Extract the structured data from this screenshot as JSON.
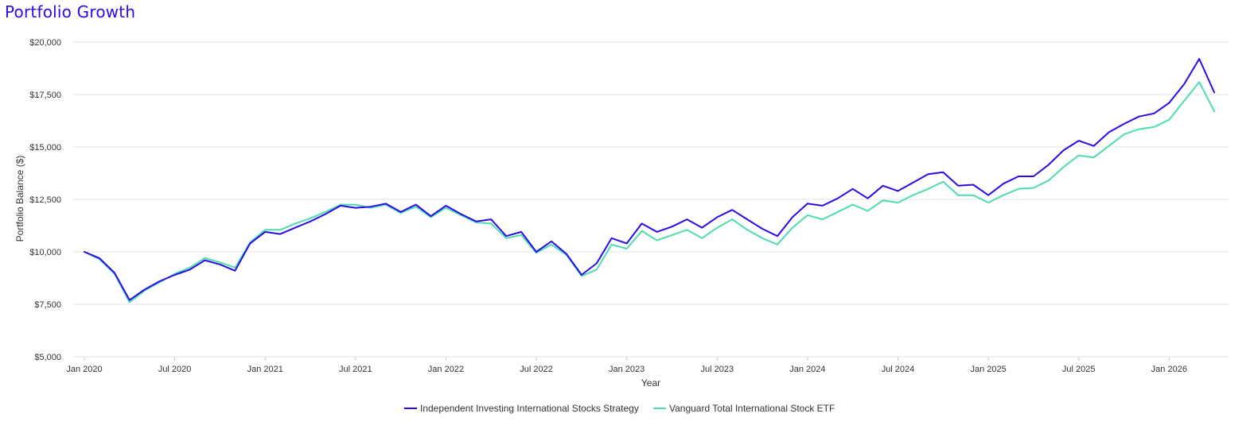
{
  "chart_data": {
    "type": "line",
    "title": "Portfolio Growth",
    "xlabel": "Year",
    "ylabel": "Portfolio Balance ($)",
    "ylim": [
      5000,
      20000
    ],
    "yticks": [
      5000,
      7500,
      10000,
      12500,
      15000,
      17500,
      20000
    ],
    "ytick_labels": [
      "$5,000",
      "$7,500",
      "$10,000",
      "$12,500",
      "$15,000",
      "$17,500",
      "$20,000"
    ],
    "x_start": "2020-01",
    "x_end": "2026-05",
    "xtick_labels": [
      "Jan 2020",
      "Jul 2020",
      "Jan 2021",
      "Jul 2021",
      "Jan 2022",
      "Jul 2022",
      "Jan 2023",
      "Jul 2023",
      "Jan 2024",
      "Jul 2024",
      "Jan 2025",
      "Jul 2025",
      "Jan 2026"
    ],
    "grid": true,
    "legend_position": "bottom",
    "series": [
      {
        "name": "Independent Investing International Stocks Strategy",
        "color": "#2a0ce6",
        "values": [
          10000,
          9700,
          9000,
          7700,
          8200,
          8600,
          8900,
          9150,
          9600,
          9400,
          9100,
          10400,
          10950,
          10850,
          11150,
          11450,
          11800,
          12200,
          12100,
          12150,
          12300,
          11900,
          12250,
          11700,
          12200,
          11800,
          11450,
          11550,
          10750,
          10950,
          10000,
          10500,
          9900,
          8900,
          9450,
          10650,
          10400,
          11350,
          10950,
          11200,
          11550,
          11150,
          11650,
          12000,
          11550,
          11100,
          10750,
          11650,
          12300,
          12200,
          12550,
          13000,
          12550,
          13150,
          12900,
          13300,
          13700,
          13800,
          13150,
          13200,
          12700,
          13250,
          13600,
          13600,
          14150,
          14850,
          15300,
          15050,
          15700,
          16100,
          16450,
          16600,
          17100,
          18000,
          19200,
          17600
        ]
      },
      {
        "name": "Vanguard Total International Stock ETF",
        "color": "#4fdcb0",
        "values": [
          10000,
          9650,
          8950,
          7600,
          8150,
          8550,
          8950,
          9250,
          9700,
          9500,
          9250,
          10450,
          11050,
          11050,
          11350,
          11600,
          11900,
          12250,
          12250,
          12100,
          12250,
          11850,
          12150,
          11650,
          12100,
          11750,
          11400,
          11350,
          10650,
          10800,
          9950,
          10350,
          9850,
          8850,
          9150,
          10350,
          10150,
          11000,
          10550,
          10800,
          11050,
          10650,
          11150,
          11550,
          11050,
          10650,
          10350,
          11150,
          11750,
          11550,
          11900,
          12250,
          11950,
          12450,
          12350,
          12700,
          13000,
          13350,
          12700,
          12700,
          12350,
          12700,
          13000,
          13050,
          13400,
          14050,
          14600,
          14500,
          15050,
          15600,
          15850,
          15950,
          16300,
          17200,
          18100,
          16700
        ]
      }
    ]
  }
}
